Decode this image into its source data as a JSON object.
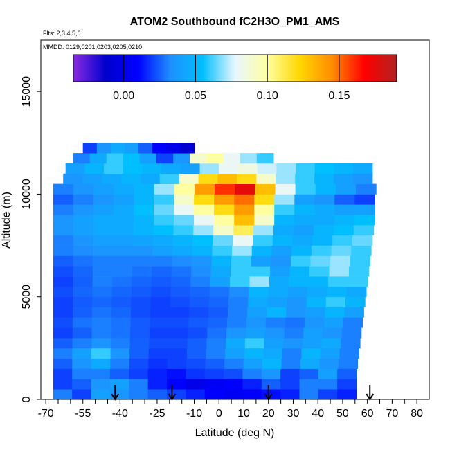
{
  "chart_data": {
    "type": "heatmap",
    "title": "ATOM2 Southbound fC2H3O_PM1_AMS",
    "subtitle_flights": "Flts: 2,3,4,5,6",
    "subtitle_dates": "MMDD: 0129,0201,0203,0205,0210",
    "xlabel": "Latitude (deg N)",
    "ylabel": "Altitude (m)",
    "xlim": [
      -72,
      85
    ],
    "ylim": [
      0,
      17500
    ],
    "x_ticks": [
      -70,
      -65,
      -60,
      -55,
      -50,
      -45,
      -40,
      -35,
      -30,
      -25,
      -20,
      -15,
      -10,
      -5,
      0,
      5,
      10,
      15,
      20,
      25,
      30,
      35,
      40,
      45,
      50,
      55,
      60,
      65,
      70,
      75,
      80
    ],
    "x_tick_labels": [
      "-70",
      "-55",
      "-40",
      "-25",
      "-10",
      "0",
      "10",
      "20",
      "30",
      "40",
      "50",
      "60",
      "70",
      "80"
    ],
    "y_ticks": [
      0,
      5000,
      10000,
      15000
    ],
    "y_tick_labels": [
      "0",
      "5000",
      "10000",
      "15000"
    ],
    "colorbar": {
      "range": [
        -0.035,
        0.19
      ],
      "ticks": [
        0.0,
        0.05,
        0.1,
        0.15
      ],
      "tick_labels": [
        "0.00",
        "0.05",
        "0.10",
        "0.15"
      ],
      "colors": [
        "#8a2be2",
        "#0000cd",
        "#0000ff",
        "#1e90ff",
        "#00bfff",
        "#e8f6ff",
        "#ffffa0",
        "#ffd700",
        "#ff8c00",
        "#ff0000",
        "#b22222"
      ]
    },
    "arrow_latitudes": [
      -42,
      -19,
      20,
      61
    ],
    "grid": false,
    "altitude_bins": [
      {
        "alt": 250,
        "lat": [
          -67,
          55.5
        ],
        "values": [
          0.03,
          0.02,
          0.04,
          0.035,
          0.03,
          0.025,
          0.02,
          0.015,
          0.01,
          0.005,
          0.008,
          0.012,
          0.015,
          0.03,
          0.02,
          0.015
        ]
      },
      {
        "alt": 750,
        "lat": [
          -67,
          55.5
        ],
        "values": [
          0.02,
          0.025,
          0.035,
          0.04,
          0.03,
          0.015,
          0.01,
          0.0,
          0.005,
          0.01,
          0.015,
          0.025,
          0.02,
          0.03,
          0.03,
          0.02
        ]
      },
      {
        "alt": 1250,
        "lat": [
          -67,
          55.5
        ],
        "values": [
          0.02,
          0.03,
          0.03,
          0.025,
          0.02,
          0.015,
          0.012,
          0.018,
          0.02,
          0.022,
          0.03,
          0.035,
          0.02,
          0.025,
          0.04,
          0.025
        ]
      },
      {
        "alt": 1750,
        "lat": [
          -67,
          56
        ],
        "values": [
          0.025,
          0.035,
          0.045,
          0.03,
          0.022,
          0.018,
          0.02,
          0.022,
          0.025,
          0.03,
          0.04,
          0.05,
          0.03,
          0.045,
          0.035,
          0.03
        ]
      },
      {
        "alt": 2250,
        "lat": [
          -67,
          56.5
        ],
        "values": [
          0.03,
          0.04,
          0.06,
          0.035,
          0.025,
          0.02,
          0.02,
          0.025,
          0.03,
          0.04,
          0.05,
          0.045,
          0.03,
          0.05,
          0.04,
          0.03
        ]
      },
      {
        "alt": 2750,
        "lat": [
          -67,
          57
        ],
        "values": [
          0.025,
          0.03,
          0.035,
          0.03,
          0.025,
          0.022,
          0.022,
          0.025,
          0.03,
          0.045,
          0.06,
          0.04,
          0.035,
          0.04,
          0.045,
          0.03
        ]
      },
      {
        "alt": 3250,
        "lat": [
          -67,
          57.5
        ],
        "values": [
          0.02,
          0.025,
          0.03,
          0.028,
          0.024,
          0.02,
          0.02,
          0.022,
          0.028,
          0.035,
          0.04,
          0.035,
          0.03,
          0.04,
          0.035,
          0.03
        ]
      },
      {
        "alt": 3750,
        "lat": [
          -67,
          58
        ],
        "values": [
          0.022,
          0.028,
          0.03,
          0.028,
          0.024,
          0.022,
          0.022,
          0.024,
          0.026,
          0.03,
          0.035,
          0.03,
          0.028,
          0.035,
          0.04,
          0.03
        ]
      },
      {
        "alt": 4250,
        "lat": [
          -67,
          58.5
        ],
        "values": [
          0.02,
          0.025,
          0.028,
          0.026,
          0.022,
          0.02,
          0.02,
          0.022,
          0.024,
          0.03,
          0.04,
          0.05,
          0.035,
          0.04,
          0.05,
          0.04
        ]
      },
      {
        "alt": 4750,
        "lat": [
          -67,
          59
        ],
        "values": [
          0.02,
          0.024,
          0.026,
          0.024,
          0.022,
          0.02,
          0.022,
          0.024,
          0.026,
          0.03,
          0.045,
          0.04,
          0.035,
          0.05,
          0.06,
          0.05
        ]
      },
      {
        "alt": 5250,
        "lat": [
          -67,
          59.5
        ],
        "values": [
          0.022,
          0.026,
          0.028,
          0.026,
          0.024,
          0.022,
          0.024,
          0.026,
          0.028,
          0.032,
          0.05,
          0.045,
          0.04,
          0.045,
          0.05,
          0.045
        ]
      },
      {
        "alt": 5750,
        "lat": [
          -67,
          60
        ],
        "values": [
          0.02,
          0.025,
          0.03,
          0.028,
          0.026,
          0.024,
          0.026,
          0.03,
          0.04,
          0.06,
          0.07,
          0.045,
          0.05,
          0.05,
          0.06,
          0.06
        ]
      },
      {
        "alt": 6250,
        "lat": [
          -67,
          60.5
        ],
        "values": [
          0.022,
          0.026,
          0.03,
          0.03,
          0.028,
          0.026,
          0.028,
          0.032,
          0.045,
          0.06,
          0.06,
          0.04,
          0.05,
          0.06,
          0.07,
          0.06
        ]
      },
      {
        "alt": 6750,
        "lat": [
          -67,
          61
        ],
        "values": [
          0.025,
          0.028,
          0.03,
          0.03,
          0.03,
          0.03,
          0.032,
          0.035,
          0.05,
          0.06,
          0.04,
          0.035,
          0.06,
          0.065,
          0.07,
          0.06
        ]
      },
      {
        "alt": 7250,
        "lat": [
          -67,
          61.5
        ],
        "values": [
          0.03,
          0.032,
          0.035,
          0.035,
          0.035,
          0.04,
          0.045,
          0.05,
          0.06,
          0.07,
          0.05,
          0.04,
          0.05,
          0.06,
          0.065,
          0.06
        ]
      },
      {
        "alt": 7750,
        "lat": [
          -67,
          62
        ],
        "values": [
          0.03,
          0.035,
          0.04,
          0.04,
          0.042,
          0.045,
          0.05,
          0.055,
          0.065,
          0.08,
          0.06,
          0.05,
          0.045,
          0.05,
          0.06,
          0.065
        ]
      },
      {
        "alt": 8250,
        "lat": [
          -67,
          62.5
        ],
        "values": [
          0.035,
          0.04,
          0.045,
          0.045,
          0.05,
          0.055,
          0.06,
          0.07,
          0.09,
          0.11,
          0.07,
          0.045,
          0.04,
          0.05,
          0.055,
          0.06
        ]
      },
      {
        "alt": 8750,
        "lat": [
          -67,
          63
        ],
        "values": [
          0.035,
          0.04,
          0.045,
          0.045,
          0.05,
          0.06,
          0.065,
          0.08,
          0.1,
          0.13,
          0.09,
          0.05,
          0.045,
          0.045,
          0.05,
          0.055
        ]
      },
      {
        "alt": 9250,
        "lat": [
          -67,
          63
        ],
        "values": [
          0.03,
          0.035,
          0.04,
          0.045,
          0.055,
          0.065,
          0.08,
          0.1,
          0.12,
          0.14,
          0.1,
          0.06,
          0.05,
          0.045,
          0.04,
          0.04
        ]
      },
      {
        "alt": 9750,
        "lat": [
          -67,
          63
        ],
        "values": [
          0.025,
          0.03,
          0.035,
          0.04,
          0.05,
          0.06,
          0.09,
          0.12,
          0.14,
          0.15,
          0.12,
          0.07,
          0.04,
          0.035,
          0.025,
          0.02
        ]
      },
      {
        "alt": 10250,
        "lat": [
          -67,
          63.5
        ],
        "values": [
          0.03,
          0.035,
          0.04,
          0.045,
          0.05,
          0.07,
          0.1,
          0.14,
          0.16,
          0.175,
          0.13,
          0.08,
          0.06,
          0.05,
          0.04,
          0.03
        ]
      },
      {
        "alt": 10750,
        "lat": [
          -63,
          62
        ],
        "values": [
          0.035,
          0.04,
          0.045,
          0.05,
          0.045,
          0.06,
          0.09,
          0.12,
          0.13,
          0.12,
          0.09,
          0.07,
          0.06,
          0.05,
          0.04,
          0.035
        ]
      },
      {
        "alt": 11250,
        "lat": [
          -62,
          62
        ],
        "values": [
          0.04,
          0.05,
          0.06,
          0.055,
          0.05,
          0.045,
          0.04,
          0.07,
          0.08,
          0.085,
          0.075,
          0.07,
          0.06,
          0.055,
          0.05,
          0.045
        ]
      },
      {
        "alt": 11750,
        "lat": [
          -59,
          22
        ],
        "values": [
          0.03,
          0.045,
          0.06,
          0.055,
          0.04,
          0.02,
          0.035,
          0.09,
          0.1,
          0.08,
          0.07,
          0.06
        ]
      },
      {
        "alt": 12250,
        "lat": [
          -55,
          -10
        ],
        "values": [
          0.02,
          0.035,
          0.045,
          0.04,
          0.025,
          0.01,
          0.0,
          -0.01
        ]
      }
    ]
  }
}
